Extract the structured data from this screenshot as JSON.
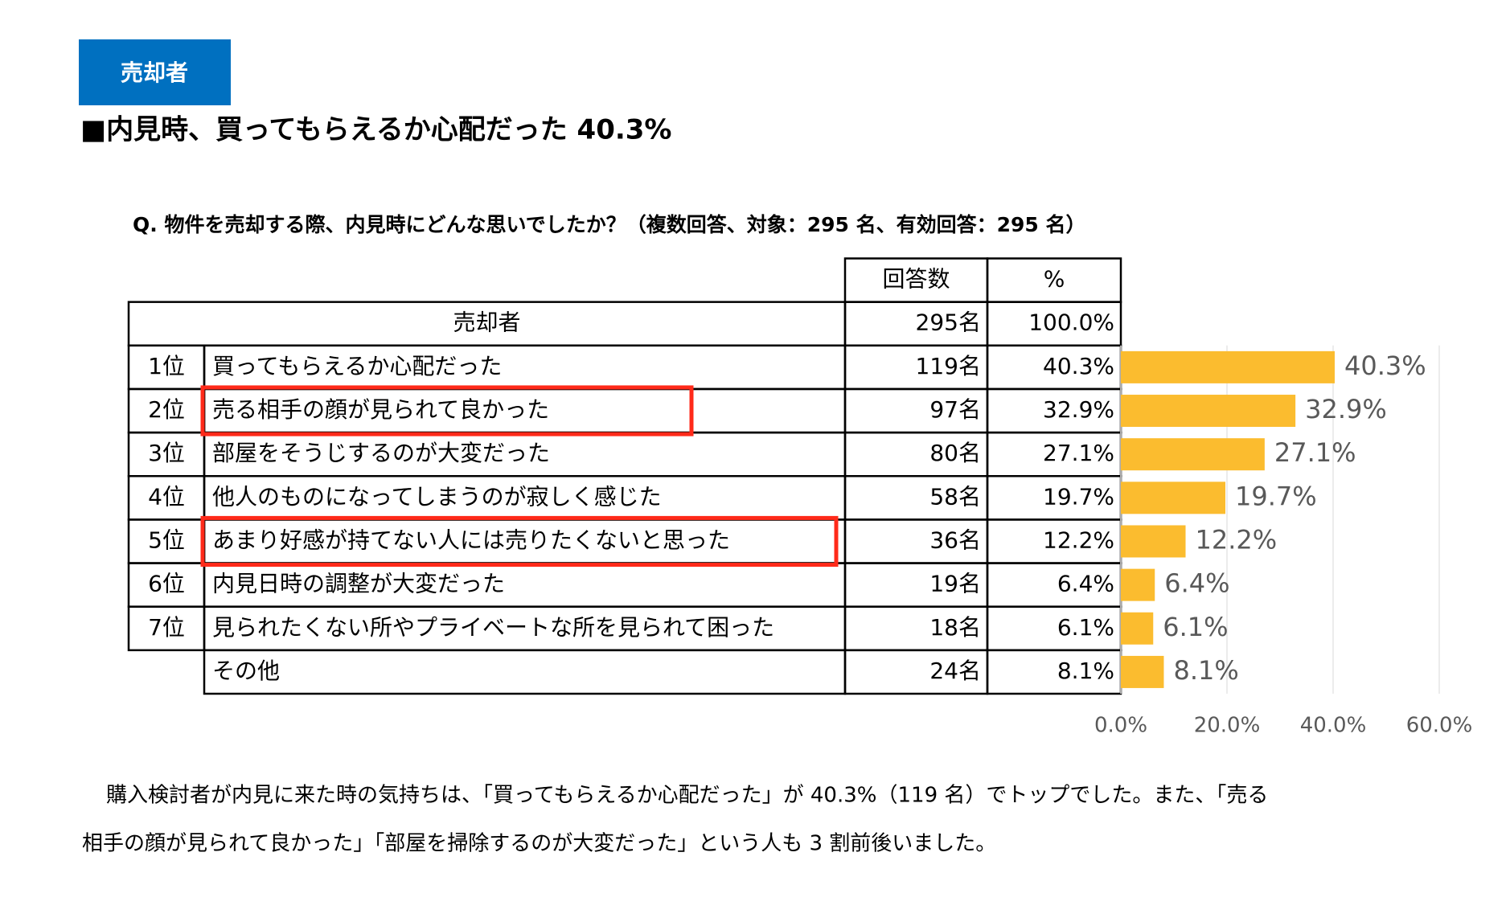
{
  "header": {
    "tag": "売却者",
    "title": "■内見時、買ってもらえるか心配だった 40.3%",
    "question": "Q.  物件を売却する際、内見時にどんな思いでしたか？（複数回答、対象：295 名、有効回答：295 名）"
  },
  "table": {
    "columns": [
      "回答数",
      "%"
    ],
    "total": {
      "label": "売却者",
      "count": "295名",
      "percent": "100.0%"
    },
    "rows": [
      {
        "rank": "1位",
        "label": "買ってもらえるか心配だった",
        "count": "119名",
        "percent": "40.3%"
      },
      {
        "rank": "2位",
        "label": "売る相手の顔が見られて良かった",
        "count": "97名",
        "percent": "32.9%"
      },
      {
        "rank": "3位",
        "label": "部屋をそうじするのが大変だった",
        "count": "80名",
        "percent": "27.1%"
      },
      {
        "rank": "4位",
        "label": "他人のものになってしまうのが寂しく感じた",
        "count": "58名",
        "percent": "19.7%"
      },
      {
        "rank": "5位",
        "label": "あまり好感が持てない人には売りたくないと思った",
        "count": "36名",
        "percent": "12.2%"
      },
      {
        "rank": "6位",
        "label": "内見日時の調整が大変だった",
        "count": "19名",
        "percent": "6.4%"
      },
      {
        "rank": "7位",
        "label": "見られたくない所やプライベートな所を見られて困った",
        "count": "18名",
        "percent": "6.1%"
      },
      {
        "label": "その他",
        "count": "24名",
        "percent": "8.1%"
      }
    ]
  },
  "chart_data": {
    "type": "hbar",
    "color": "#fbbc2f",
    "values": [
      40.3,
      32.9,
      27.1,
      19.7,
      12.2,
      6.4,
      6.1,
      8.1
    ],
    "value_labels": [
      "40.3%",
      "32.9%",
      "27.1%",
      "19.7%",
      "12.2%",
      "6.4%",
      "6.1%",
      "8.1%"
    ],
    "xlim": [
      0,
      60
    ],
    "xticks": [
      {
        "value": 0,
        "label": "0.0%"
      },
      {
        "value": 20,
        "label": "20.0%"
      },
      {
        "value": 40,
        "label": "40.0%"
      },
      {
        "value": 60,
        "label": "60.0%"
      }
    ],
    "grid": true
  },
  "body": [
    "購入検討者が内見に来た時の気持ちは、「買ってもらえるか心配だった」が 40.3%（119 名）でトップでした。また、「売る",
    "相手の顔が見られて良かった」「部屋を掃除するのが大変だった」という人も 3 割前後いました。"
  ]
}
